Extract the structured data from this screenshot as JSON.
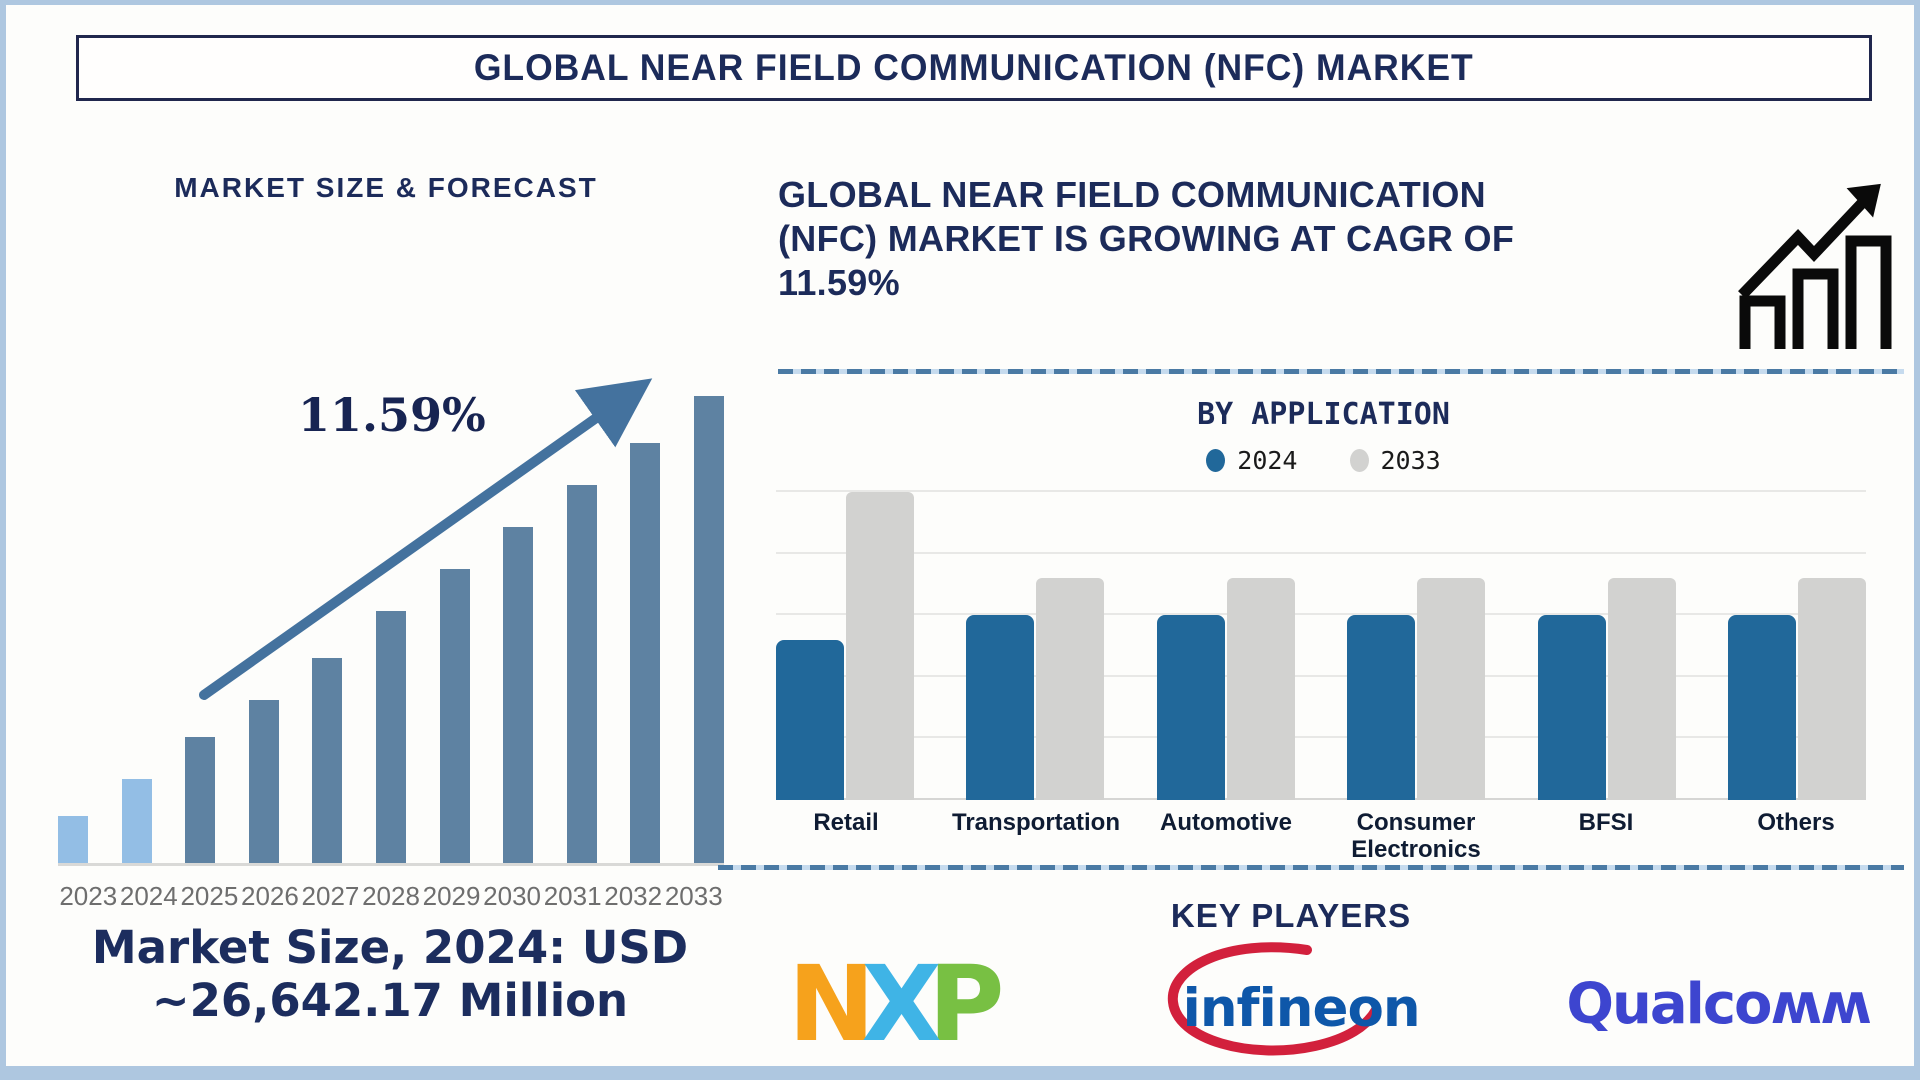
{
  "page_title": "GLOBAL NEAR FIELD COMMUNICATION (NFC) MARKET",
  "left_panel": {
    "heading": "MARKET SIZE & FORECAST",
    "cagr_annotation": "11.59%",
    "market_size_note_line1": "Market Size, 2024: USD",
    "market_size_note_line2": "~26,642.17 Million"
  },
  "right_panel": {
    "cagr_heading_lines": [
      "GLOBAL NEAR FIELD COMMUNICATION",
      "(NFC) MARKET IS GROWING AT CAGR OF",
      "11.59%"
    ],
    "by_application_title": "BY APPLICATION",
    "key_players_title": "KEY PLAYERS",
    "players": [
      {
        "name": "NXP",
        "letters": [
          "N",
          "X",
          "P"
        ],
        "colors": [
          "#f6a21c",
          "#3fb4e6",
          "#78c043"
        ]
      },
      {
        "name": "Infineon",
        "display": "infineon",
        "text_color": "#0e57a9",
        "swoosh_color": "#d2203c"
      },
      {
        "name": "Qualcomm",
        "display": "Qualcoʍʍ",
        "text_color": "#3d45cf"
      }
    ]
  },
  "chart_data": [
    {
      "type": "bar",
      "title": "MARKET SIZE & FORECAST",
      "categories": [
        "2023",
        "2024",
        "2025",
        "2026",
        "2027",
        "2028",
        "2029",
        "2030",
        "2031",
        "2032",
        "2033"
      ],
      "values_pct_of_max": [
        10,
        18,
        27,
        35,
        44,
        54,
        63,
        72,
        81,
        90,
        100
      ],
      "value_axis": "not labeled (stylized growth bars)",
      "known_point": "2024 = USD ~26,642.17 Million",
      "cagr": "11.59%",
      "historic_bar_count": 2,
      "historic_color": "#93bee5",
      "forecast_color": "#5e82a2",
      "annotation_arrow_color": "#44729e",
      "grid": false,
      "legend_position": "none"
    },
    {
      "type": "bar",
      "title": "BY APPLICATION",
      "categories": [
        "Retail",
        "Transportation",
        "Automotive",
        "Consumer Electronics",
        "BFSI",
        "Others"
      ],
      "series": [
        {
          "name": "2024",
          "color": "#21689a",
          "values_pct_of_axis": [
            52,
            60,
            60,
            60,
            60,
            60
          ]
        },
        {
          "name": "2033",
          "color": "#d2d2d0",
          "values_pct_of_axis": [
            100,
            72,
            72,
            72,
            72,
            72
          ]
        }
      ],
      "value_axis": "not labeled (relative comparison, 5 gridline intervals)",
      "gridline_count": 6,
      "grid": true,
      "legend_position": "top"
    }
  ]
}
